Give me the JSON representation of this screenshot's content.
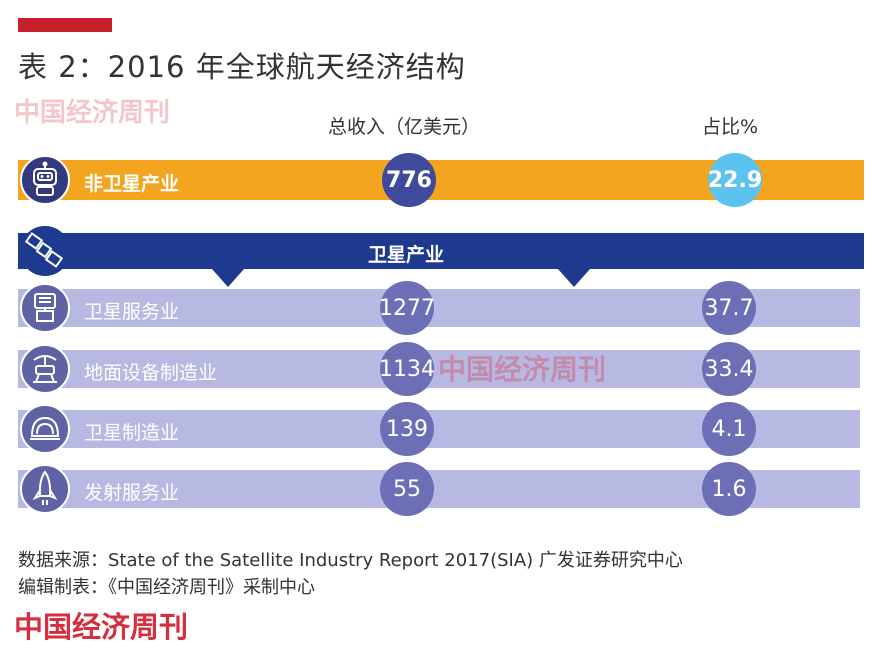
{
  "title": "表 2：2016 年全球航天经济结构",
  "watermark": "中国经济周刊",
  "headers": {
    "revenue": "总收入（亿美元）",
    "share": "占比%"
  },
  "colors": {
    "orange": "#f3a51f",
    "navy": "#1d3a8f",
    "row": "#b8b9e2",
    "brand_red": "#c8202a"
  },
  "chart_data": {
    "type": "table",
    "columns": [
      "总收入（亿美元）",
      "占比%"
    ],
    "rows": [
      {
        "label": "非卫星产业",
        "revenue": "776",
        "share": "22.9",
        "icon": "robot-icon"
      },
      {
        "label": "卫星产业",
        "group_header": true,
        "icon": "satellite-icon"
      },
      {
        "label": "卫星服务业",
        "revenue": "1277",
        "share": "37.7",
        "icon": "satellite-dish-icon"
      },
      {
        "label": "地面设备制造业",
        "revenue": "1134",
        "share": "33.4",
        "icon": "ground-station-icon"
      },
      {
        "label": "卫星制造业",
        "revenue": "139",
        "share": "4.1",
        "icon": "satellite-body-icon"
      },
      {
        "label": "发射服务业",
        "revenue": "55",
        "share": "1.6",
        "icon": "rocket-icon"
      }
    ]
  },
  "footer": {
    "source": "数据来源：State of the Satellite Industry Report 2017(SIA) 广发证券研究中心",
    "editor": "编辑制表：《中国经济周刊》采制中心",
    "brand": "中国经济周刊"
  }
}
